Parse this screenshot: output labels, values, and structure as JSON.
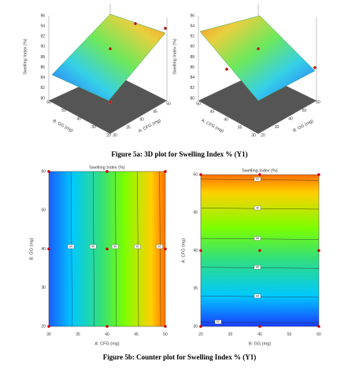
{
  "figure_a": {
    "caption": "Figure 5a: 3D  plot for Swelling Index % (Y1)",
    "panels": [
      {
        "z_label": "Swelling Index (%)",
        "z_ticks": [
          80,
          82,
          84,
          86,
          88,
          90,
          92,
          94,
          96
        ],
        "x_label": "A: CFG (mg)",
        "x_ticks": [
          30,
          35,
          40,
          45,
          50
        ],
        "y_label": "B: GG (mg)",
        "y_ticks": [
          20,
          30,
          40,
          50,
          60
        ]
      },
      {
        "z_label": "Swelling Index (%)",
        "z_ticks": [
          80,
          82,
          84,
          86,
          88,
          90,
          92,
          94,
          96
        ],
        "x_label": "B: GG (mg)",
        "x_ticks": [
          20,
          30,
          40,
          50,
          60
        ],
        "y_label": "A: CFG (mg)",
        "y_ticks": [
          30,
          35,
          40,
          45,
          50
        ]
      }
    ]
  },
  "figure_b": {
    "caption": "Figure 5b: Counter plot for Swelling Index % (Y1)",
    "panels": [
      {
        "title": "Swelling Index (%)",
        "x_label": "A: CFG (mg)",
        "x_ticks": [
          30,
          35,
          40,
          45,
          50
        ],
        "y_label": "B: GG (mg)",
        "y_ticks": [
          20,
          30,
          40,
          50,
          60
        ],
        "contour_labels": [
          84,
          86,
          88,
          90,
          92
        ]
      },
      {
        "title": "Swelling Index (%)",
        "x_label": "B: GG (mg)",
        "x_ticks": [
          20,
          30,
          40,
          50,
          60
        ],
        "y_label": "A: CFG (mg)",
        "y_ticks": [
          30,
          35,
          40,
          45,
          50
        ],
        "contour_labels": [
          82,
          84,
          86,
          88,
          90,
          92
        ]
      }
    ]
  }
}
